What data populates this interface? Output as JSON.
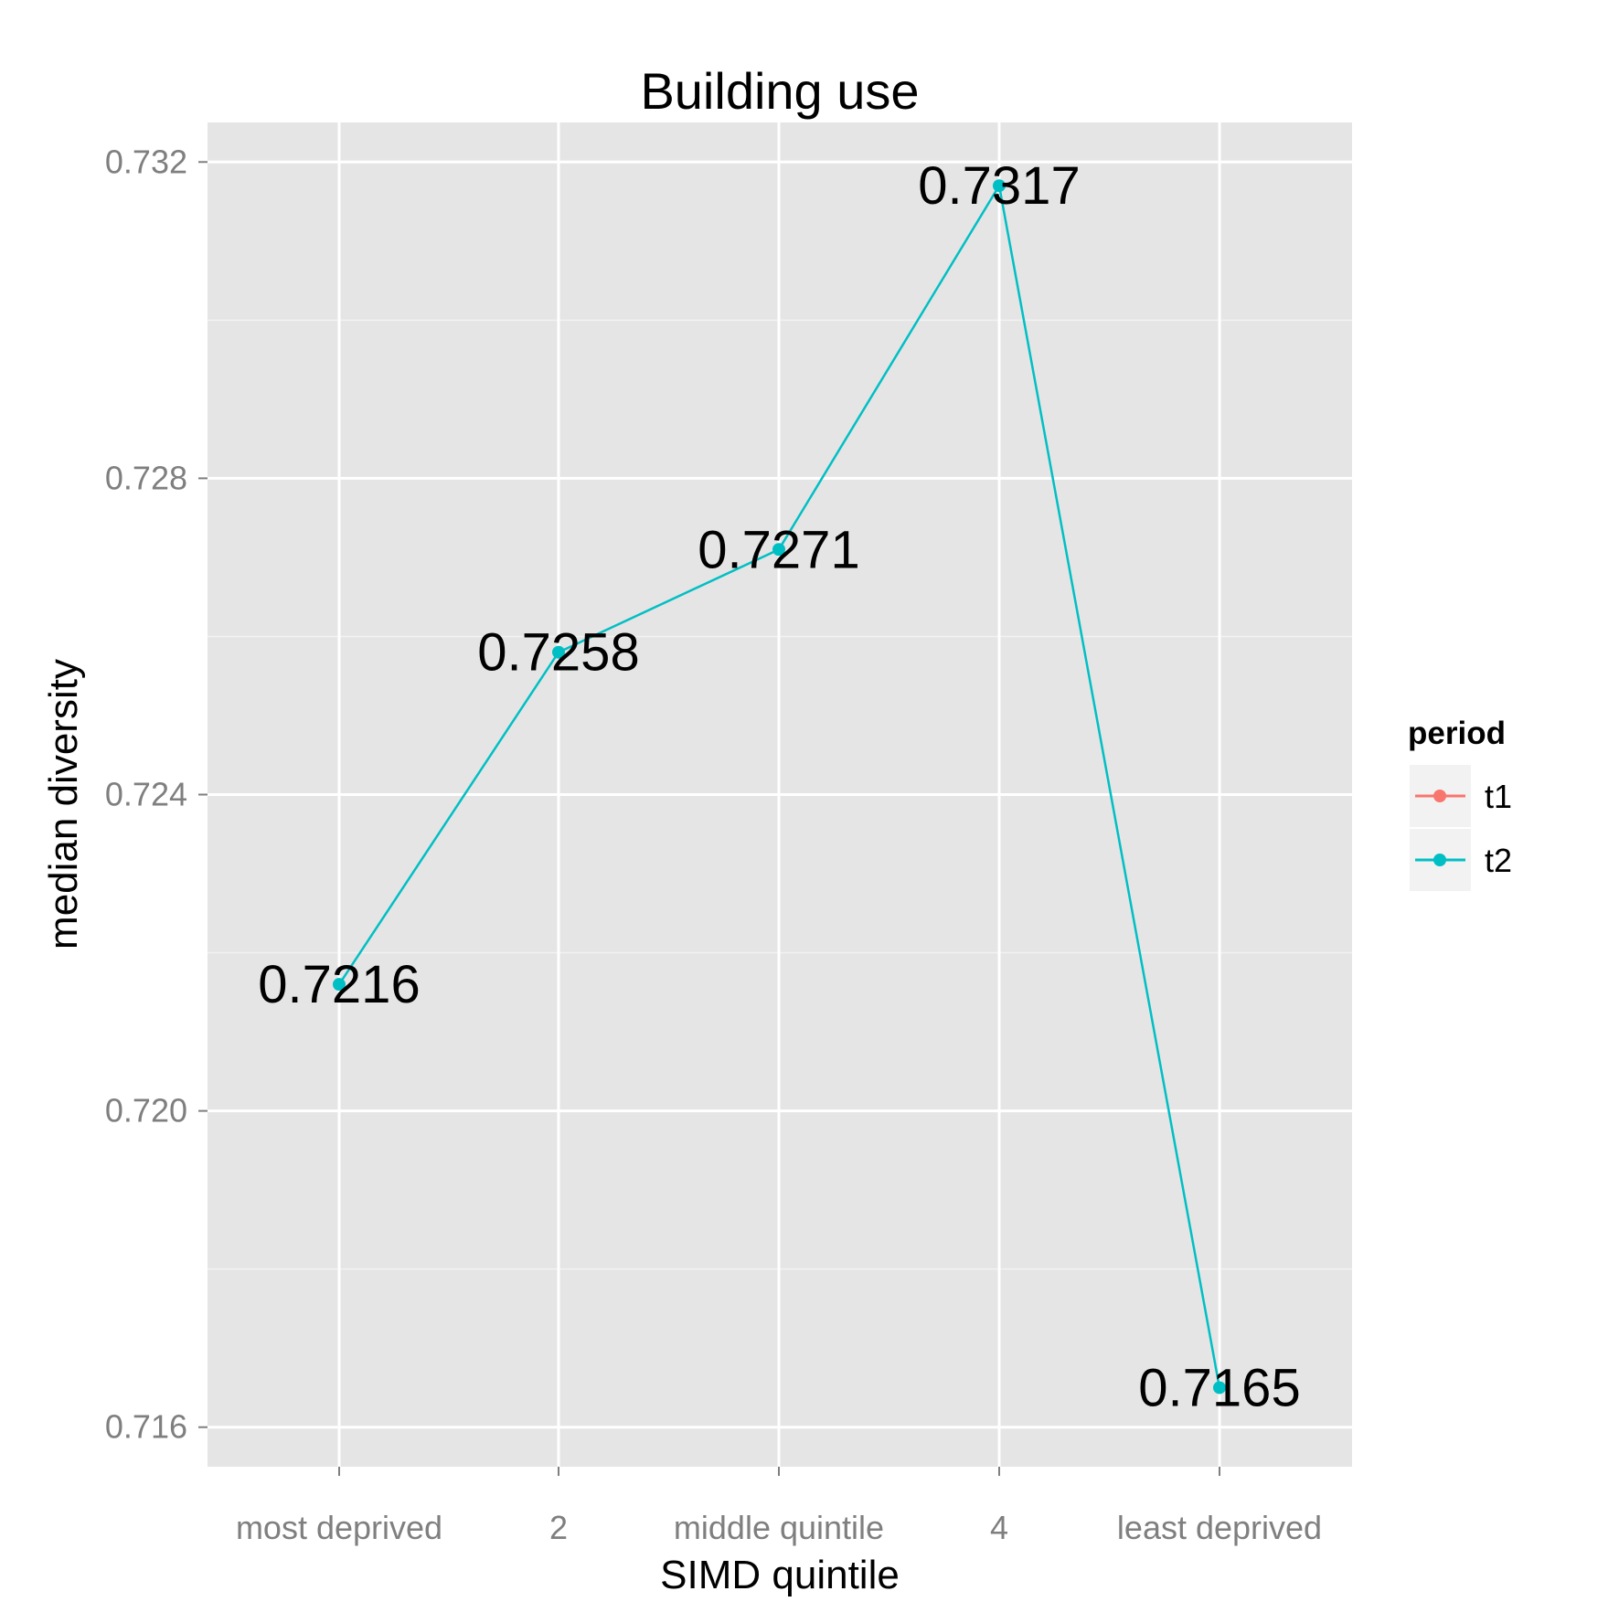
{
  "chart_data": {
    "type": "line",
    "title": "Building use",
    "xlabel": "SIMD quintile",
    "ylabel": "median diversity",
    "categories": [
      "most deprived",
      "2",
      "middle quintile",
      "4",
      "least deprived"
    ],
    "ylim": [
      0.7155,
      0.7325
    ],
    "yticks": [
      0.716,
      0.72,
      0.724,
      0.728,
      0.732
    ],
    "ytick_labels": [
      "0.716",
      "0.720",
      "0.724",
      "0.728",
      "0.732"
    ],
    "grid": true,
    "legend": {
      "title": "period",
      "placement": "right",
      "entries": [
        {
          "label": "t1",
          "color": "#F8766D"
        },
        {
          "label": "t2",
          "color": "#00BFC4"
        }
      ]
    },
    "series": [
      {
        "name": "t2",
        "color": "#00BFC4",
        "values": [
          0.7216,
          0.7258,
          0.7271,
          0.7317,
          0.7165
        ],
        "labels": [
          "0.7216",
          "0.7258",
          "0.7271",
          "0.7317",
          "0.7165"
        ]
      }
    ]
  },
  "colors": {
    "panel_background": "#E5E5E5",
    "grid_major": "#FFFFFF",
    "grid_minor": "#F2F2F2",
    "tick_text": "#7F7F7F"
  }
}
